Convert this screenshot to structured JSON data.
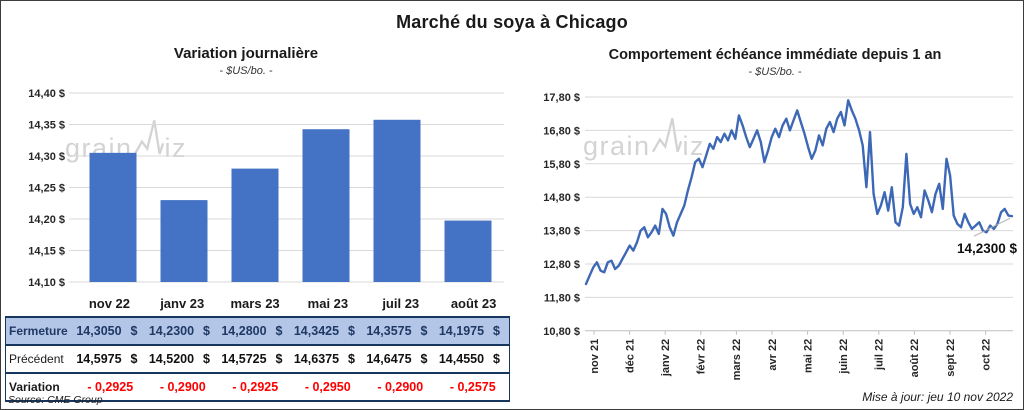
{
  "page": {
    "title": "Marché du soya à Chicago",
    "source": "Source: CME Group",
    "updated": "Mise à jour: jeu 10 nov 2022",
    "watermark": {
      "prefix": "grain",
      "suffix": "iz"
    }
  },
  "colors": {
    "accent_blue": "#4472C4",
    "line_blue": "#3D68B5",
    "fermeture_bg": "#B4C6E7",
    "navy": "#1F3864",
    "negative_red": "#FF0000",
    "grid": "#D9D9D9",
    "axis": "#BFBFBF",
    "tick_text": "#262626",
    "leader_gray": "#AFAFAF"
  },
  "chart_data": [
    {
      "type": "bar",
      "title": "Variation journalière",
      "subtitle": "- $US/bo. -",
      "categories": [
        "nov 22",
        "janv 23",
        "mars 23",
        "mai 23",
        "juil 23",
        "août 23"
      ],
      "values": [
        14.305,
        14.23,
        14.28,
        14.3425,
        14.3575,
        14.1975
      ],
      "ylim": [
        14.1,
        14.4
      ],
      "ytick_labels": [
        "14,40 $",
        "14,35 $",
        "14,30 $",
        "14,25 $",
        "14,20 $",
        "14,15 $",
        "14,10 $"
      ],
      "grid": true,
      "legend": "none"
    },
    {
      "type": "line",
      "title": "Comportement échéance immédiate depuis 1 an",
      "subtitle": "- $US/bo. -",
      "x_labels": [
        "nov 21",
        "déc 21",
        "janv 22",
        "févr 22",
        "mars 22",
        "avr 22",
        "mai 22",
        "juin 22",
        "juil 22",
        "août 22",
        "sept 22",
        "oct 22"
      ],
      "values": [
        12.2,
        12.45,
        12.7,
        12.85,
        12.6,
        12.55,
        12.85,
        12.9,
        12.65,
        12.75,
        12.95,
        13.15,
        13.35,
        13.2,
        13.45,
        13.8,
        13.9,
        13.6,
        13.75,
        13.95,
        13.7,
        14.45,
        14.3,
        13.9,
        13.65,
        14.05,
        14.3,
        14.55,
        15.0,
        15.4,
        15.85,
        15.95,
        15.7,
        16.05,
        16.4,
        16.25,
        16.6,
        16.45,
        16.7,
        16.5,
        16.8,
        16.55,
        17.25,
        16.95,
        16.6,
        16.3,
        16.55,
        16.8,
        16.45,
        15.85,
        16.2,
        16.6,
        16.85,
        16.6,
        16.95,
        17.15,
        16.8,
        17.1,
        17.4,
        17.05,
        16.7,
        16.3,
        15.95,
        16.2,
        16.65,
        16.35,
        16.85,
        17.05,
        16.75,
        17.15,
        17.35,
        16.95,
        17.7,
        17.4,
        17.15,
        16.8,
        16.35,
        15.1,
        16.75,
        14.9,
        14.3,
        14.55,
        14.95,
        14.4,
        15.1,
        14.05,
        13.95,
        14.5,
        16.1,
        14.6,
        14.3,
        14.5,
        14.2,
        15.0,
        14.7,
        14.35,
        14.9,
        15.2,
        14.45,
        15.95,
        15.45,
        14.25,
        14.0,
        13.9,
        14.3,
        14.05,
        13.85,
        13.95,
        14.05,
        13.8,
        13.75,
        13.95,
        13.85,
        14.0,
        14.35,
        14.45,
        14.25,
        14.23
      ],
      "ylim": [
        10.8,
        17.8
      ],
      "ytick_labels": [
        "17,80 $",
        "16,80 $",
        "15,80 $",
        "14,80 $",
        "13,80 $",
        "12,80 $",
        "11,80 $",
        "10,80 $"
      ],
      "annotation": "14,2300 $",
      "grid": true,
      "legend": "none"
    }
  ],
  "table": {
    "rows": [
      {
        "label": "Fermeture",
        "style": "fermeture",
        "suffix": "$",
        "values": [
          "14,3050",
          "14,2300",
          "14,2800",
          "14,3425",
          "14,3575",
          "14,1975"
        ]
      },
      {
        "label": "Précédent",
        "style": "precedent",
        "suffix": "$",
        "values": [
          "14,5975",
          "14,5200",
          "14,5725",
          "14,6375",
          "14,6475",
          "14,4550"
        ]
      },
      {
        "label": "Variation",
        "style": "variation",
        "suffix": "",
        "values": [
          "- 0,2925",
          "- 0,2900",
          "- 0,2925",
          "- 0,2950",
          "- 0,2900",
          "- 0,2575"
        ]
      }
    ]
  }
}
